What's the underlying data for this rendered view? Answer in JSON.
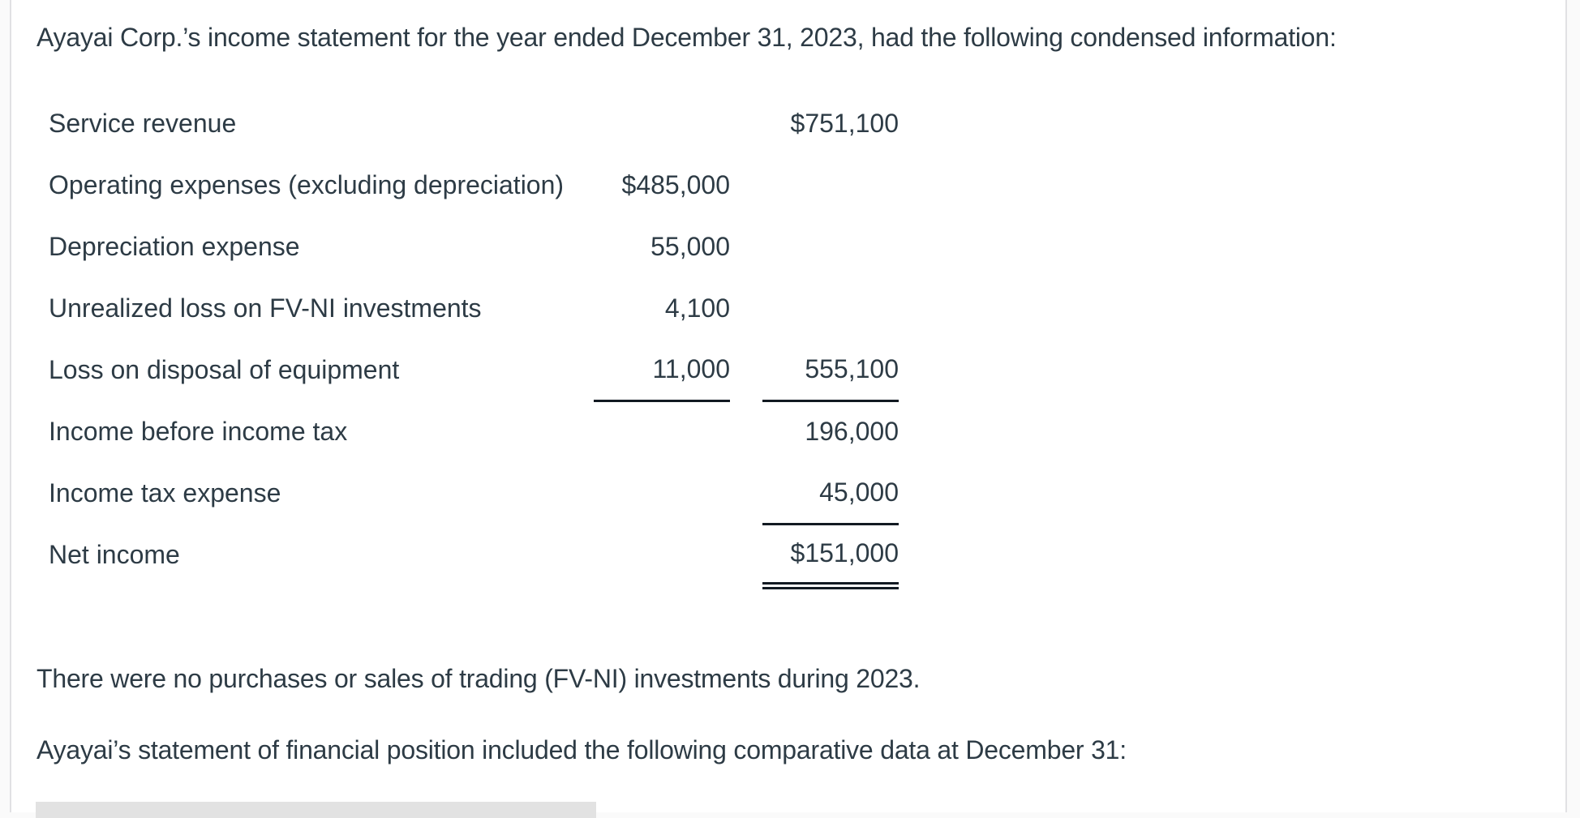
{
  "colors": {
    "text": "#2D3B45",
    "rule": "#121A22",
    "panel_border": "#E1E1E4",
    "page_background": "#FAFAFA",
    "panel_background": "#FFFFFF",
    "table_fragment_bar": "#E2E2E2"
  },
  "intro": {
    "text": "Ayayai Corp.’s income statement for the year ended December 31, 2023, had the following condensed information:"
  },
  "income_statement": {
    "rows": [
      {
        "label": "Service revenue",
        "middle": "",
        "right": "$751,100",
        "middle_rule": "none",
        "right_rule": "none"
      },
      {
        "label": "Operating expenses (excluding depreciation)",
        "middle": "$485,000",
        "right": "",
        "middle_rule": "none",
        "right_rule": "none"
      },
      {
        "label": "Depreciation expense",
        "middle": "55,000",
        "right": "",
        "middle_rule": "none",
        "right_rule": "none"
      },
      {
        "label": "Unrealized loss on FV-NI investments",
        "middle": "4,100",
        "right": "",
        "middle_rule": "none",
        "right_rule": "none"
      },
      {
        "label": "Loss on disposal of equipment",
        "middle": "11,000",
        "right": "555,100",
        "middle_rule": "single",
        "right_rule": "single"
      },
      {
        "label": "Income before income tax",
        "middle": "",
        "right": "196,000",
        "middle_rule": "none",
        "right_rule": "none"
      },
      {
        "label": "Income tax expense",
        "middle": "",
        "right": "45,000",
        "middle_rule": "none",
        "right_rule": "single"
      },
      {
        "label": "Net income",
        "middle": "",
        "right": "$151,000",
        "middle_rule": "none",
        "right_rule": "double"
      }
    ]
  },
  "notes": [
    {
      "text": "There were no purchases or sales of trading (FV-NI) investments during 2023."
    },
    {
      "text": "Ayayai’s statement of financial position included the following comparative data at December 31:"
    }
  ]
}
